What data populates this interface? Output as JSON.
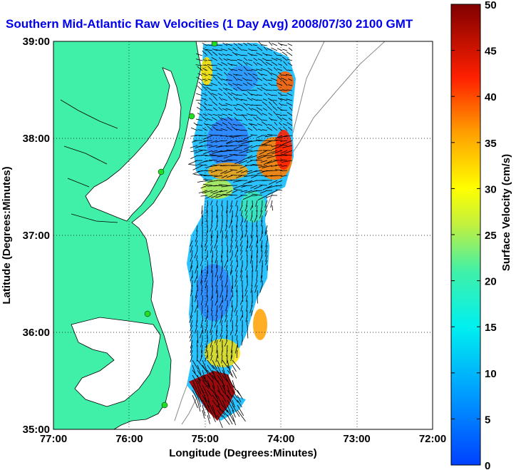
{
  "title": "Southern Mid-Atlantic Raw Velocities (1 Day Avg) 2008/07/30 2100 GMT",
  "xlabel": "Longitude (Degrees:Minutes)",
  "ylabel": "Latitude (Degrees:Minutes)",
  "colorbar_label": "Surface Velocity (cm/s)",
  "x_ticks": [
    "77:00",
    "76:00",
    "75:00",
    "74:00",
    "73:00",
    "72:00"
  ],
  "y_ticks": [
    "39:00",
    "38:00",
    "37:00",
    "36:00",
    "35:00"
  ],
  "colorbar_ticks": [
    "0",
    "5",
    "10",
    "15",
    "20",
    "25",
    "30",
    "35",
    "40",
    "45",
    "50"
  ],
  "colors": {
    "land": "#40f0a8",
    "title": "#0000ee",
    "station": "#22dd22",
    "arrow": "#000000"
  },
  "extent": {
    "lon_range": [
      -77,
      -72
    ],
    "lat_range": [
      35,
      39
    ]
  },
  "color_scale": {
    "min": 0,
    "max": 50,
    "units": "cm/s"
  }
}
